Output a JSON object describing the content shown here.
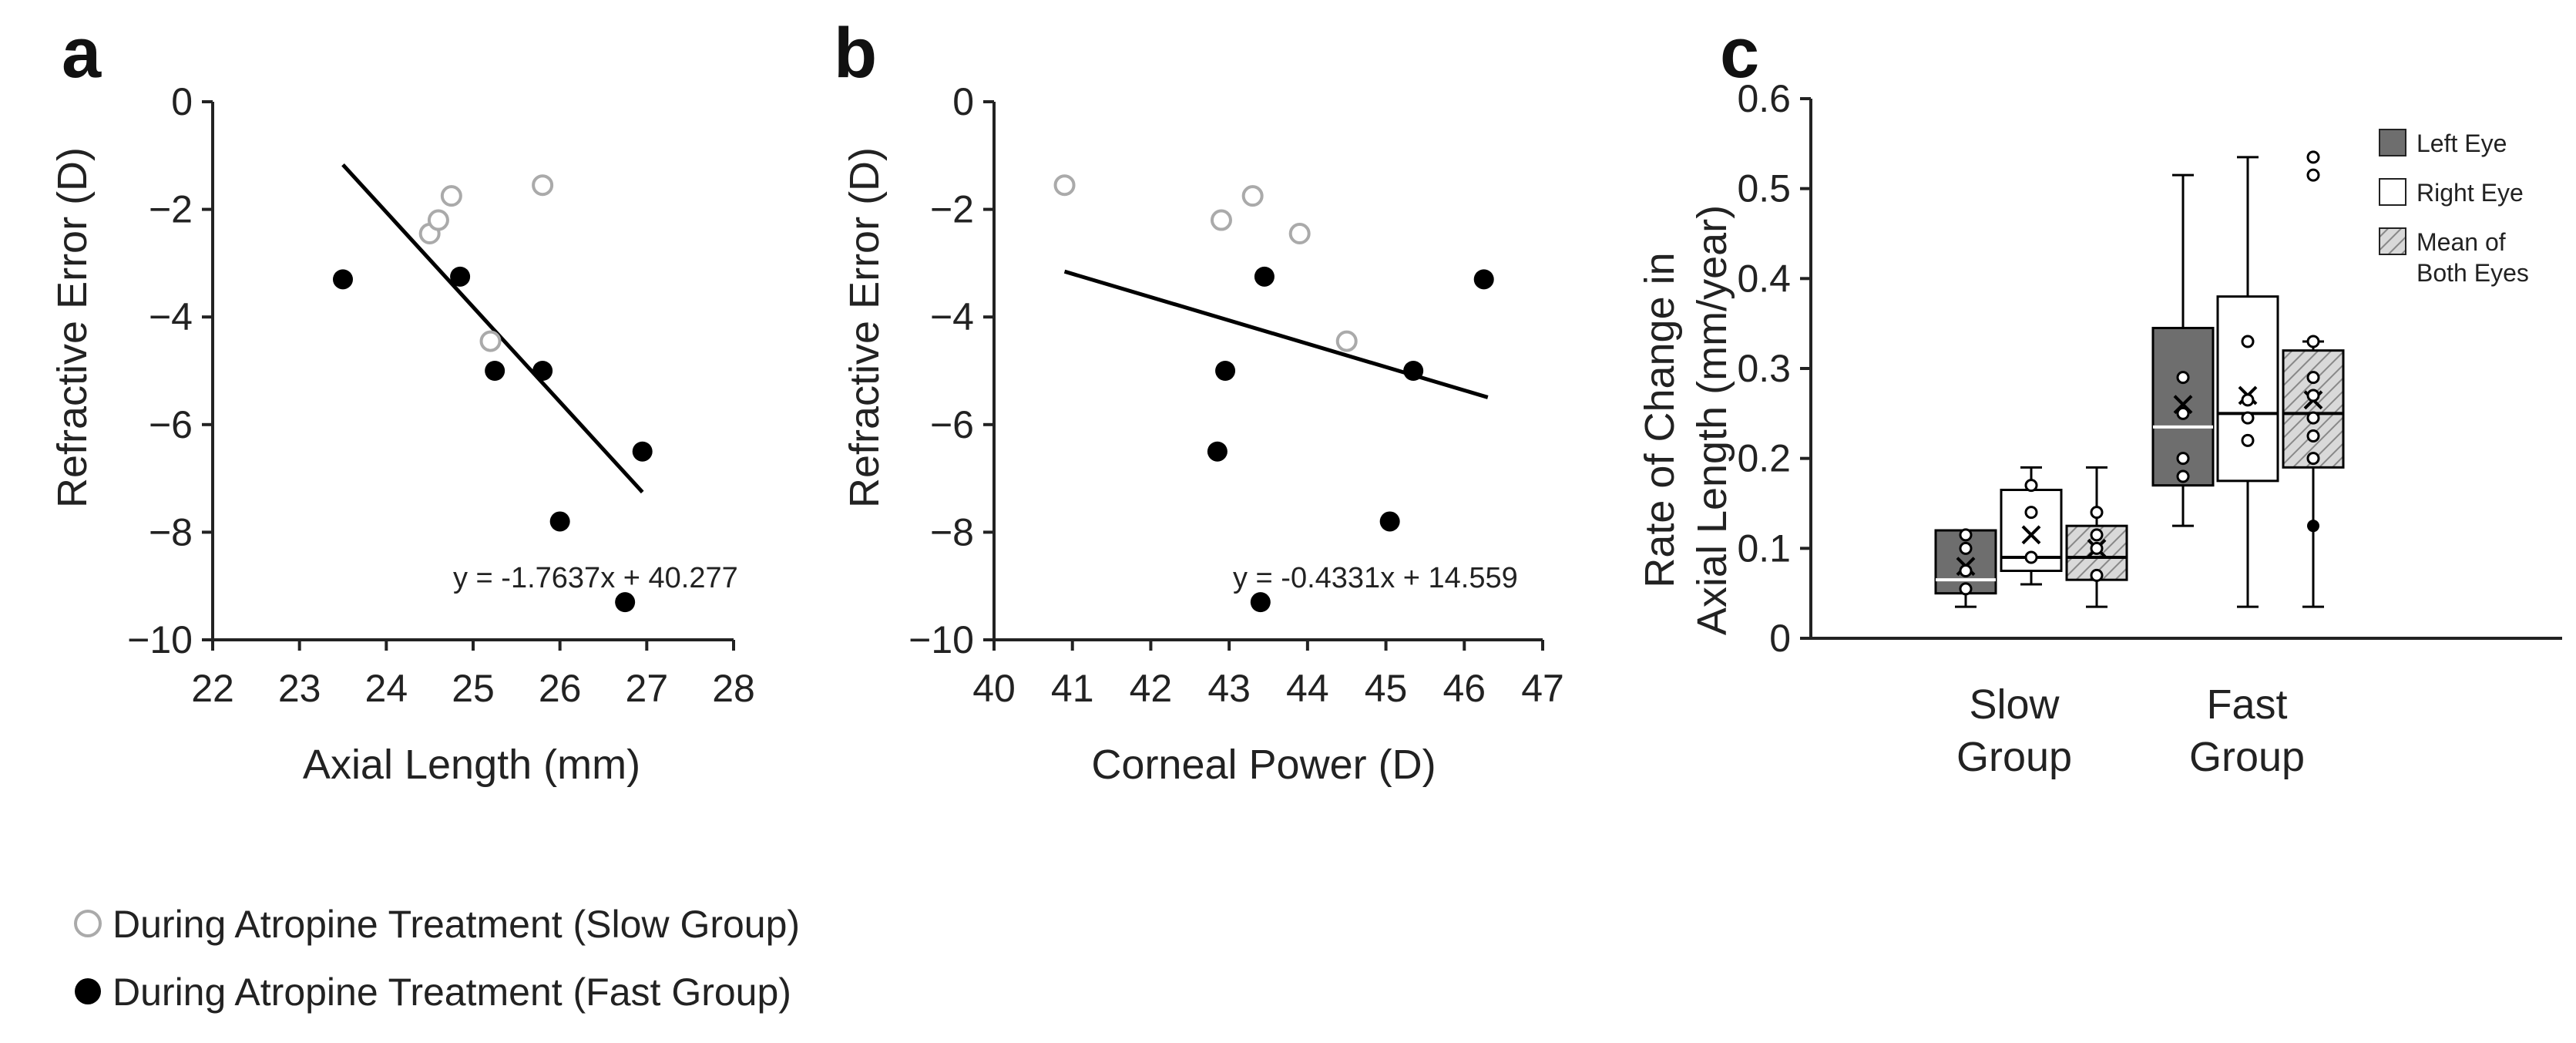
{
  "figure": {
    "legend": [
      {
        "label": "During Atropine Treatment (Slow Group)",
        "marker": "open-circle"
      },
      {
        "label": "During Atropine Treatment (Fast Group)",
        "marker": "filled-circle"
      }
    ]
  },
  "colors": {
    "slow_marker": "#aaaaaa",
    "fast_marker": "#000000",
    "left_eye_fill": "#6e6e6e",
    "right_eye_fill": "#ffffff",
    "mean_fill": "#d9d9d9",
    "axis": "#222222"
  },
  "chart_data": [
    {
      "panel": "a",
      "type": "scatter",
      "title": "",
      "xlabel": "Axial Length (mm)",
      "ylabel": "Refractive Error (D)",
      "xlim": [
        22,
        28
      ],
      "ylim": [
        -10,
        0
      ],
      "xticks": [
        "22",
        "23",
        "24",
        "25",
        "26",
        "27",
        "28"
      ],
      "yticks": [
        "0",
        "−2",
        "−4",
        "−6",
        "−8",
        "−10"
      ],
      "series": [
        {
          "name": "Slow Group",
          "marker": "open",
          "points": [
            [
              24.5,
              -2.45
            ],
            [
              24.6,
              -2.2
            ],
            [
              24.75,
              -1.75
            ],
            [
              25.2,
              -4.45
            ],
            [
              25.8,
              -1.55
            ]
          ]
        },
        {
          "name": "Fast Group",
          "marker": "filled",
          "points": [
            [
              23.5,
              -3.3
            ],
            [
              24.85,
              -3.25
            ],
            [
              25.25,
              -5.0
            ],
            [
              25.8,
              -5.0
            ],
            [
              26.0,
              -7.8
            ],
            [
              26.75,
              -9.3
            ],
            [
              26.95,
              -6.5
            ]
          ]
        }
      ],
      "trendline": {
        "equation": "y = -1.7637x + 40.277",
        "slope": -1.7637,
        "intercept": 40.277,
        "x_range": [
          23.5,
          26.95
        ]
      }
    },
    {
      "panel": "b",
      "type": "scatter",
      "title": "",
      "xlabel": "Corneal Power (D)",
      "ylabel": "Refractive Error (D)",
      "xlim": [
        40,
        47
      ],
      "ylim": [
        -10,
        0
      ],
      "xticks": [
        "40",
        "41",
        "42",
        "43",
        "44",
        "45",
        "46",
        "47"
      ],
      "yticks": [
        "0",
        "−2",
        "−4",
        "−6",
        "−8",
        "−10"
      ],
      "series": [
        {
          "name": "Slow Group",
          "marker": "open",
          "points": [
            [
              40.9,
              -1.55
            ],
            [
              42.9,
              -2.2
            ],
            [
              43.3,
              -1.75
            ],
            [
              43.9,
              -2.45
            ],
            [
              44.5,
              -4.45
            ]
          ]
        },
        {
          "name": "Fast Group",
          "marker": "filled",
          "points": [
            [
              42.85,
              -6.5
            ],
            [
              42.95,
              -5.0
            ],
            [
              43.4,
              -9.3
            ],
            [
              43.45,
              -3.25
            ],
            [
              45.05,
              -7.8
            ],
            [
              45.35,
              -5.0
            ],
            [
              46.25,
              -3.3
            ]
          ]
        }
      ],
      "trendline": {
        "equation": "y = -0.4331x + 14.559",
        "slope": -0.4331,
        "intercept": 14.559,
        "x_range": [
          40.9,
          46.3
        ]
      }
    },
    {
      "panel": "c",
      "type": "box",
      "title": "",
      "xlabel": "",
      "ylabel_lines": [
        "Rate of Change in",
        "Axial Length (mm/year)"
      ],
      "ylim": [
        0,
        0.6
      ],
      "yticks": [
        "0",
        "0.1",
        "0.2",
        "0.3",
        "0.4",
        "0.5",
        "0.6"
      ],
      "categories": [
        {
          "lines": [
            "Slow",
            "Group"
          ]
        },
        {
          "lines": [
            "Fast",
            "Group"
          ]
        }
      ],
      "legend": [
        {
          "label_lines": [
            "Left Eye"
          ],
          "style": "left"
        },
        {
          "label_lines": [
            "Right Eye"
          ],
          "style": "right"
        },
        {
          "label_lines": [
            "Mean of",
            "Both Eyes"
          ],
          "style": "mean"
        }
      ],
      "boxes": [
        {
          "group": 0,
          "style": "left",
          "whisker_low": 0.035,
          "q1": 0.05,
          "median": 0.065,
          "q3": 0.12,
          "whisker_high": 0.12,
          "mean": 0.08,
          "points": [
            0.055,
            0.075,
            0.1,
            0.115
          ],
          "filled_points": []
        },
        {
          "group": 0,
          "style": "right",
          "whisker_low": 0.06,
          "q1": 0.075,
          "median": 0.09,
          "q3": 0.165,
          "whisker_high": 0.19,
          "mean": 0.115,
          "points": [
            0.09,
            0.14,
            0.17
          ],
          "filled_points": []
        },
        {
          "group": 0,
          "style": "mean",
          "whisker_low": 0.035,
          "q1": 0.065,
          "median": 0.09,
          "q3": 0.125,
          "whisker_high": 0.19,
          "mean": 0.1,
          "points": [
            0.07,
            0.1,
            0.115,
            0.14
          ],
          "filled_points": []
        },
        {
          "group": 1,
          "style": "left",
          "whisker_low": 0.125,
          "q1": 0.17,
          "median": 0.235,
          "q3": 0.345,
          "whisker_high": 0.515,
          "mean": 0.26,
          "points": [
            0.18,
            0.2,
            0.25,
            0.29
          ],
          "filled_points": []
        },
        {
          "group": 1,
          "style": "right",
          "whisker_low": 0.035,
          "q1": 0.175,
          "median": 0.25,
          "q3": 0.38,
          "whisker_high": 0.535,
          "mean": 0.27,
          "points": [
            0.22,
            0.245,
            0.265,
            0.33
          ],
          "filled_points": []
        },
        {
          "group": 1,
          "style": "mean",
          "whisker_low": 0.035,
          "q1": 0.19,
          "median": 0.25,
          "q3": 0.32,
          "whisker_high": 0.33,
          "mean": 0.265,
          "points": [
            0.2,
            0.225,
            0.245,
            0.27,
            0.29,
            0.33
          ],
          "filled_points": [
            0.125
          ],
          "outliers": [
            0.515,
            0.535
          ]
        }
      ]
    }
  ]
}
